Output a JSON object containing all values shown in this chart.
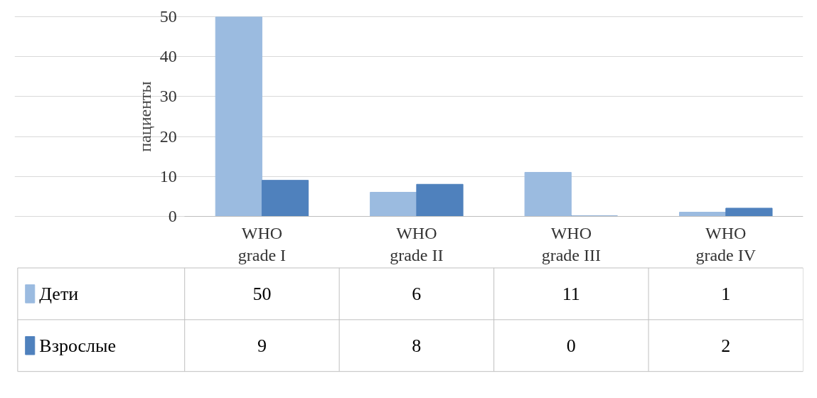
{
  "chart_data": {
    "type": "bar",
    "ylabel": "пациенты",
    "categories": [
      "WHO grade I",
      "WHO grade II",
      "WHO grade III",
      "WHO grade IV"
    ],
    "series": [
      {
        "name": "Дети",
        "color": "#9bbbe0",
        "values": [
          50,
          6,
          11,
          1
        ]
      },
      {
        "name": "Взрослые",
        "color": "#4f81bd",
        "values": [
          9,
          8,
          0,
          2
        ]
      }
    ],
    "ylim": [
      0,
      50
    ],
    "yticks": [
      0,
      10,
      20,
      30,
      40,
      50
    ],
    "grid": "y",
    "data_labels": true,
    "legend": "bottom"
  }
}
